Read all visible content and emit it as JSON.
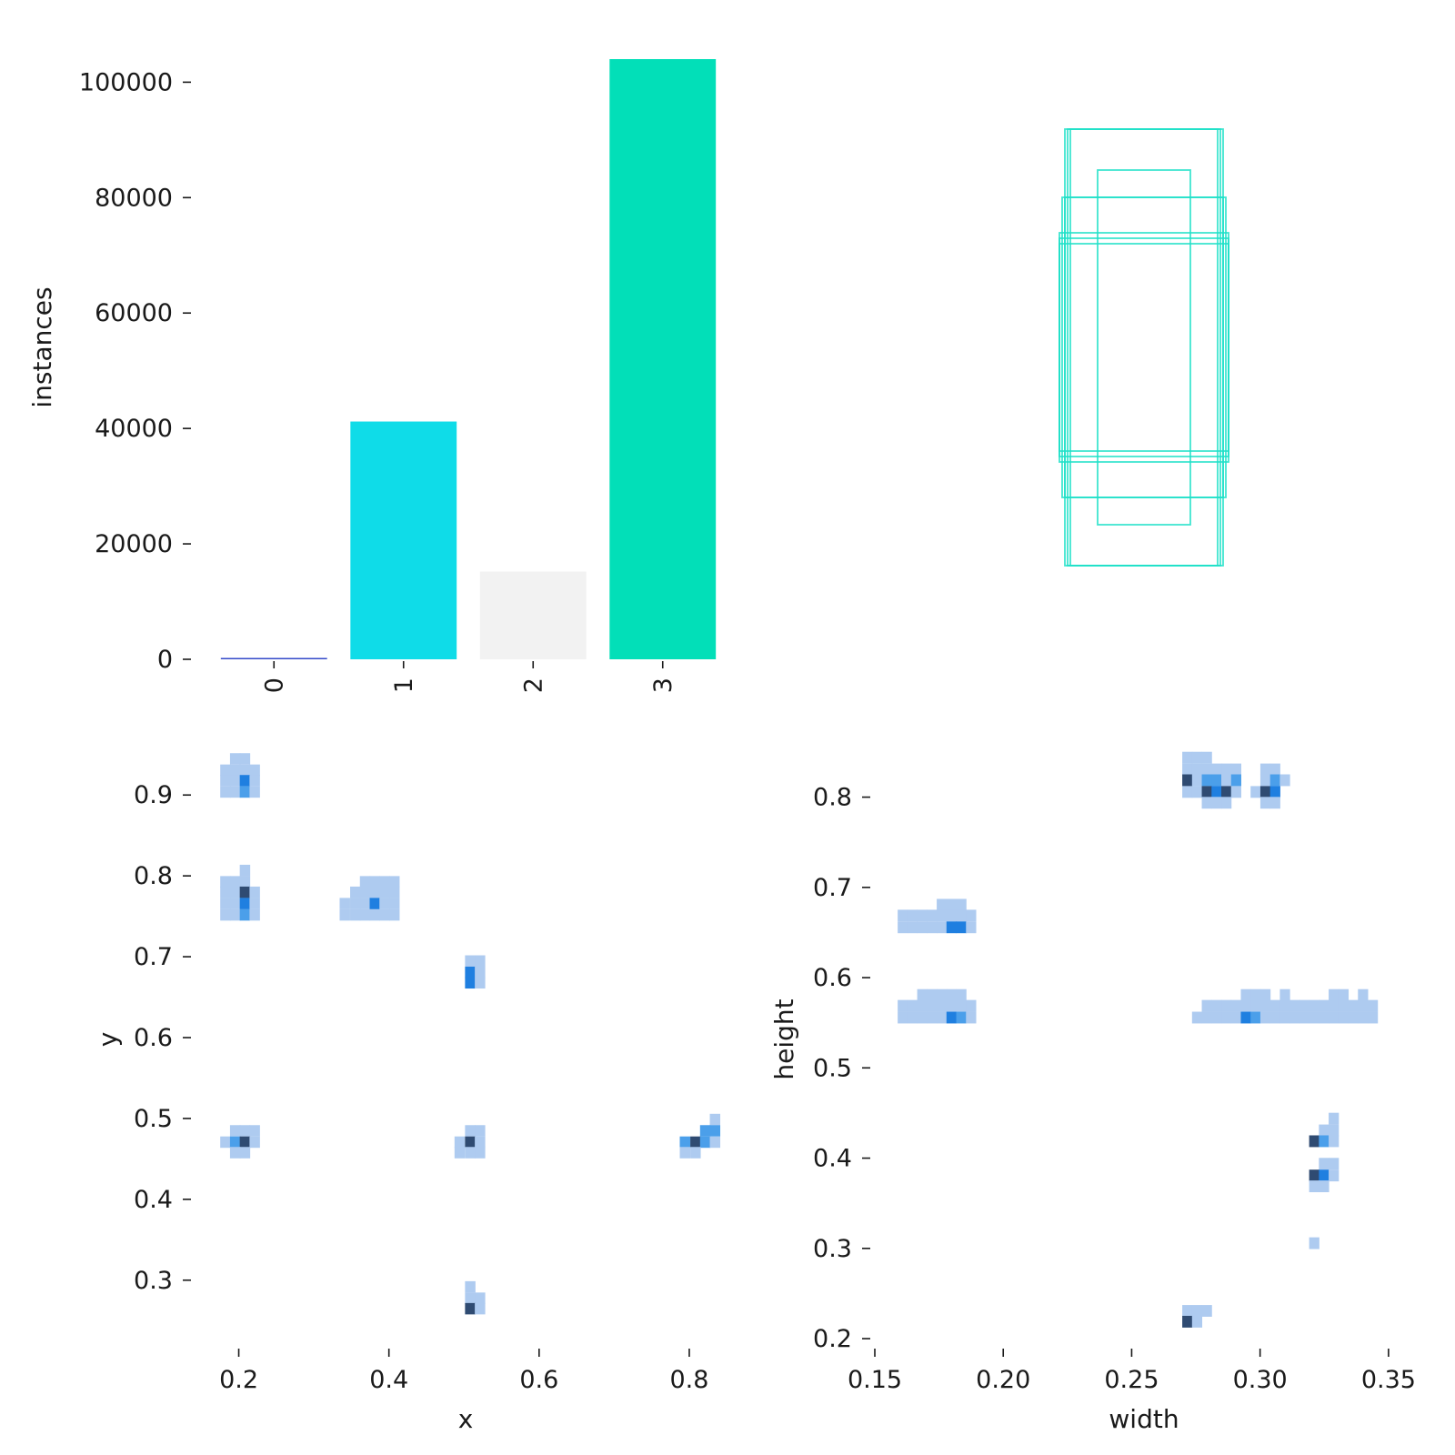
{
  "colors": {
    "class_0": "#3349c9",
    "class_1": "#0fdce8",
    "class_2": "#f2f2f2",
    "class_3": "#02dfb8",
    "box_outline": "#1ee0c8",
    "heat_low": "#aecbf0",
    "heat_mid": "#4b9fea",
    "heat_high": "#1f7fe0",
    "heat_max": "#2f4b72"
  },
  "chart_data": [
    {
      "id": "class-counts",
      "type": "bar",
      "categories": [
        "0",
        "1",
        "2",
        "3"
      ],
      "values": [
        50,
        41200,
        15200,
        104000
      ],
      "title": "",
      "xlabel": "",
      "ylabel": "instances",
      "ylim": [
        0,
        104000
      ],
      "yticks": [
        0,
        20000,
        40000,
        60000,
        80000,
        100000
      ],
      "ytick_labels": [
        "0",
        "20000",
        "40000",
        "60000",
        "80000",
        "100000"
      ],
      "grid": false
    },
    {
      "id": "box-overlay",
      "type": "box-outlines",
      "title": "",
      "boxes": [
        {
          "w": 0.27,
          "h": 0.8
        },
        {
          "w": 0.28,
          "h": 0.8
        },
        {
          "w": 0.29,
          "h": 0.8
        },
        {
          "w": 0.17,
          "h": 0.65
        },
        {
          "w": 0.29,
          "h": 0.55
        },
        {
          "w": 0.3,
          "h": 0.55
        },
        {
          "w": 0.31,
          "h": 0.42
        },
        {
          "w": 0.31,
          "h": 0.38
        },
        {
          "w": 0.31,
          "h": 0.4
        }
      ]
    },
    {
      "id": "xy-hist",
      "type": "heatmap",
      "xlabel": "x",
      "ylabel": "y",
      "xlim": [
        0.14,
        0.84
      ],
      "ylim": [
        0.23,
        0.97
      ],
      "xticks": [
        0.2,
        0.4,
        0.6,
        0.8
      ],
      "xtick_labels": [
        "0.2",
        "0.4",
        "0.6",
        "0.8"
      ],
      "yticks": [
        0.3,
        0.4,
        0.5,
        0.6,
        0.7,
        0.8,
        0.9
      ],
      "ytick_labels": [
        "0.3",
        "0.4",
        "0.5",
        "0.6",
        "0.7",
        "0.8",
        "0.9"
      ],
      "bin": [
        0.0133,
        0.0135
      ],
      "cells": [
        [
          0.195,
          0.945,
          1
        ],
        [
          0.208,
          0.945,
          1
        ],
        [
          0.182,
          0.931,
          1
        ],
        [
          0.195,
          0.931,
          1
        ],
        [
          0.208,
          0.931,
          1
        ],
        [
          0.221,
          0.931,
          1
        ],
        [
          0.182,
          0.918,
          1
        ],
        [
          0.195,
          0.918,
          1
        ],
        [
          0.208,
          0.918,
          3
        ],
        [
          0.221,
          0.918,
          1
        ],
        [
          0.182,
          0.904,
          1
        ],
        [
          0.195,
          0.904,
          1
        ],
        [
          0.208,
          0.904,
          2
        ],
        [
          0.221,
          0.904,
          1
        ],
        [
          0.208,
          0.807,
          1
        ],
        [
          0.182,
          0.793,
          1
        ],
        [
          0.195,
          0.793,
          1
        ],
        [
          0.208,
          0.793,
          1
        ],
        [
          0.182,
          0.78,
          1
        ],
        [
          0.195,
          0.78,
          1
        ],
        [
          0.208,
          0.78,
          4
        ],
        [
          0.221,
          0.78,
          1
        ],
        [
          0.182,
          0.766,
          1
        ],
        [
          0.195,
          0.766,
          1
        ],
        [
          0.208,
          0.766,
          3
        ],
        [
          0.221,
          0.766,
          1
        ],
        [
          0.182,
          0.752,
          1
        ],
        [
          0.195,
          0.752,
          1
        ],
        [
          0.208,
          0.752,
          2
        ],
        [
          0.221,
          0.752,
          1
        ],
        [
          0.368,
          0.793,
          1
        ],
        [
          0.381,
          0.793,
          1
        ],
        [
          0.394,
          0.793,
          1
        ],
        [
          0.407,
          0.793,
          1
        ],
        [
          0.355,
          0.78,
          1
        ],
        [
          0.368,
          0.78,
          1
        ],
        [
          0.381,
          0.78,
          1
        ],
        [
          0.394,
          0.78,
          1
        ],
        [
          0.407,
          0.78,
          1
        ],
        [
          0.341,
          0.766,
          1
        ],
        [
          0.355,
          0.766,
          1
        ],
        [
          0.368,
          0.766,
          1
        ],
        [
          0.381,
          0.766,
          3
        ],
        [
          0.394,
          0.766,
          1
        ],
        [
          0.407,
          0.766,
          1
        ],
        [
          0.341,
          0.752,
          1
        ],
        [
          0.355,
          0.752,
          1
        ],
        [
          0.368,
          0.752,
          1
        ],
        [
          0.381,
          0.752,
          1
        ],
        [
          0.394,
          0.752,
          1
        ],
        [
          0.407,
          0.752,
          1
        ],
        [
          0.508,
          0.695,
          1
        ],
        [
          0.521,
          0.695,
          1
        ],
        [
          0.508,
          0.681,
          3
        ],
        [
          0.521,
          0.681,
          1
        ],
        [
          0.508,
          0.668,
          3
        ],
        [
          0.521,
          0.668,
          1
        ],
        [
          0.195,
          0.485,
          1
        ],
        [
          0.208,
          0.485,
          1
        ],
        [
          0.221,
          0.485,
          1
        ],
        [
          0.182,
          0.471,
          1
        ],
        [
          0.195,
          0.471,
          2
        ],
        [
          0.208,
          0.471,
          4
        ],
        [
          0.221,
          0.471,
          1
        ],
        [
          0.195,
          0.458,
          1
        ],
        [
          0.208,
          0.458,
          1
        ],
        [
          0.508,
          0.485,
          1
        ],
        [
          0.521,
          0.485,
          1
        ],
        [
          0.494,
          0.471,
          1
        ],
        [
          0.508,
          0.471,
          4
        ],
        [
          0.521,
          0.471,
          1
        ],
        [
          0.494,
          0.458,
          1
        ],
        [
          0.508,
          0.458,
          1
        ],
        [
          0.521,
          0.458,
          1
        ],
        [
          0.834,
          0.499,
          1
        ],
        [
          0.821,
          0.485,
          2
        ],
        [
          0.834,
          0.485,
          2
        ],
        [
          0.794,
          0.471,
          2
        ],
        [
          0.808,
          0.471,
          4
        ],
        [
          0.821,
          0.471,
          2
        ],
        [
          0.834,
          0.471,
          1
        ],
        [
          0.794,
          0.458,
          1
        ],
        [
          0.808,
          0.458,
          1
        ],
        [
          0.508,
          0.292,
          1
        ],
        [
          0.508,
          0.278,
          1
        ],
        [
          0.521,
          0.278,
          1
        ],
        [
          0.508,
          0.265,
          4
        ],
        [
          0.521,
          0.265,
          1
        ]
      ]
    },
    {
      "id": "wh-hist",
      "type": "heatmap",
      "xlabel": "width",
      "ylabel": "height",
      "xlim": [
        0.15,
        0.355
      ],
      "ylim": [
        0.195,
        0.855
      ],
      "xticks": [
        0.15,
        0.2,
        0.25,
        0.3,
        0.35
      ],
      "xtick_labels": [
        "0.15",
        "0.20",
        "0.25",
        "0.30",
        "0.35"
      ],
      "yticks": [
        0.2,
        0.3,
        0.4,
        0.5,
        0.6,
        0.7,
        0.8
      ],
      "ytick_labels": [
        "0.2",
        "0.3",
        "0.4",
        "0.5",
        "0.6",
        "0.7",
        "0.8"
      ],
      "bin": [
        0.0038,
        0.0125
      ],
      "cells": [
        [
          0.2716,
          0.844,
          1
        ],
        [
          0.2754,
          0.844,
          1
        ],
        [
          0.2792,
          0.844,
          1
        ],
        [
          0.2716,
          0.831,
          1
        ],
        [
          0.2754,
          0.831,
          1
        ],
        [
          0.2792,
          0.831,
          1
        ],
        [
          0.283,
          0.831,
          1
        ],
        [
          0.2868,
          0.831,
          1
        ],
        [
          0.2906,
          0.831,
          1
        ],
        [
          0.302,
          0.831,
          1
        ],
        [
          0.3058,
          0.831,
          1
        ],
        [
          0.2716,
          0.819,
          4
        ],
        [
          0.2754,
          0.819,
          1
        ],
        [
          0.2792,
          0.819,
          2
        ],
        [
          0.283,
          0.819,
          2
        ],
        [
          0.2868,
          0.819,
          1
        ],
        [
          0.2906,
          0.819,
          2
        ],
        [
          0.302,
          0.819,
          1
        ],
        [
          0.3058,
          0.819,
          2
        ],
        [
          0.3096,
          0.819,
          1
        ],
        [
          0.2716,
          0.806,
          1
        ],
        [
          0.2754,
          0.806,
          1
        ],
        [
          0.2792,
          0.806,
          4
        ],
        [
          0.283,
          0.806,
          3
        ],
        [
          0.2868,
          0.806,
          4
        ],
        [
          0.2906,
          0.806,
          1
        ],
        [
          0.2982,
          0.806,
          1
        ],
        [
          0.302,
          0.806,
          4
        ],
        [
          0.3058,
          0.806,
          3
        ],
        [
          0.2792,
          0.794,
          1
        ],
        [
          0.283,
          0.794,
          1
        ],
        [
          0.2868,
          0.794,
          1
        ],
        [
          0.302,
          0.794,
          1
        ],
        [
          0.3058,
          0.794,
          1
        ],
        [
          0.176,
          0.681,
          1
        ],
        [
          0.1798,
          0.681,
          1
        ],
        [
          0.1836,
          0.681,
          1
        ],
        [
          0.1608,
          0.669,
          1
        ],
        [
          0.1646,
          0.669,
          1
        ],
        [
          0.1684,
          0.669,
          1
        ],
        [
          0.1722,
          0.669,
          1
        ],
        [
          0.176,
          0.669,
          1
        ],
        [
          0.1798,
          0.669,
          1
        ],
        [
          0.1836,
          0.669,
          1
        ],
        [
          0.1874,
          0.669,
          1
        ],
        [
          0.1608,
          0.656,
          1
        ],
        [
          0.1646,
          0.656,
          1
        ],
        [
          0.1684,
          0.656,
          1
        ],
        [
          0.1722,
          0.656,
          1
        ],
        [
          0.176,
          0.656,
          1
        ],
        [
          0.1798,
          0.656,
          3
        ],
        [
          0.1836,
          0.656,
          3
        ],
        [
          0.1874,
          0.656,
          1
        ],
        [
          0.1684,
          0.581,
          1
        ],
        [
          0.1722,
          0.581,
          1
        ],
        [
          0.176,
          0.581,
          1
        ],
        [
          0.1798,
          0.581,
          1
        ],
        [
          0.1836,
          0.581,
          1
        ],
        [
          0.1608,
          0.569,
          1
        ],
        [
          0.1646,
          0.569,
          1
        ],
        [
          0.1684,
          0.569,
          1
        ],
        [
          0.1722,
          0.569,
          1
        ],
        [
          0.176,
          0.569,
          1
        ],
        [
          0.1798,
          0.569,
          1
        ],
        [
          0.1836,
          0.569,
          1
        ],
        [
          0.1874,
          0.569,
          1
        ],
        [
          0.1608,
          0.556,
          1
        ],
        [
          0.1646,
          0.556,
          1
        ],
        [
          0.1684,
          0.556,
          1
        ],
        [
          0.1722,
          0.556,
          1
        ],
        [
          0.176,
          0.556,
          1
        ],
        [
          0.1798,
          0.556,
          3
        ],
        [
          0.1836,
          0.556,
          2
        ],
        [
          0.1874,
          0.556,
          1
        ],
        [
          0.2944,
          0.581,
          1
        ],
        [
          0.2982,
          0.581,
          1
        ],
        [
          0.302,
          0.581,
          1
        ],
        [
          0.3096,
          0.581,
          1
        ],
        [
          0.3286,
          0.581,
          1
        ],
        [
          0.3324,
          0.581,
          1
        ],
        [
          0.34,
          0.581,
          1
        ],
        [
          0.2792,
          0.569,
          1
        ],
        [
          0.283,
          0.569,
          1
        ],
        [
          0.2868,
          0.569,
          1
        ],
        [
          0.2906,
          0.569,
          1
        ],
        [
          0.2944,
          0.569,
          1
        ],
        [
          0.2982,
          0.569,
          1
        ],
        [
          0.302,
          0.569,
          1
        ],
        [
          0.3058,
          0.569,
          1
        ],
        [
          0.3096,
          0.569,
          1
        ],
        [
          0.3134,
          0.569,
          1
        ],
        [
          0.3172,
          0.569,
          1
        ],
        [
          0.321,
          0.569,
          1
        ],
        [
          0.3248,
          0.569,
          1
        ],
        [
          0.3286,
          0.569,
          1
        ],
        [
          0.3324,
          0.569,
          1
        ],
        [
          0.3362,
          0.569,
          1
        ],
        [
          0.34,
          0.569,
          1
        ],
        [
          0.3438,
          0.569,
          1
        ],
        [
          0.2754,
          0.556,
          1
        ],
        [
          0.2792,
          0.556,
          1
        ],
        [
          0.283,
          0.556,
          1
        ],
        [
          0.2868,
          0.556,
          1
        ],
        [
          0.2906,
          0.556,
          1
        ],
        [
          0.2944,
          0.556,
          3
        ],
        [
          0.2982,
          0.556,
          2
        ],
        [
          0.302,
          0.556,
          1
        ],
        [
          0.3058,
          0.556,
          1
        ],
        [
          0.3096,
          0.556,
          1
        ],
        [
          0.3134,
          0.556,
          1
        ],
        [
          0.3172,
          0.556,
          1
        ],
        [
          0.321,
          0.556,
          1
        ],
        [
          0.3248,
          0.556,
          1
        ],
        [
          0.3286,
          0.556,
          1
        ],
        [
          0.3324,
          0.556,
          1
        ],
        [
          0.3362,
          0.556,
          1
        ],
        [
          0.34,
          0.556,
          1
        ],
        [
          0.3438,
          0.556,
          1
        ],
        [
          0.3286,
          0.444,
          1
        ],
        [
          0.3248,
          0.431,
          1
        ],
        [
          0.3286,
          0.431,
          1
        ],
        [
          0.321,
          0.419,
          4
        ],
        [
          0.3248,
          0.419,
          2
        ],
        [
          0.3286,
          0.419,
          1
        ],
        [
          0.3248,
          0.394,
          1
        ],
        [
          0.3286,
          0.394,
          1
        ],
        [
          0.321,
          0.381,
          4
        ],
        [
          0.3248,
          0.381,
          3
        ],
        [
          0.3286,
          0.381,
          1
        ],
        [
          0.321,
          0.369,
          1
        ],
        [
          0.3248,
          0.369,
          1
        ],
        [
          0.321,
          0.306,
          1
        ],
        [
          0.2716,
          0.231,
          1
        ],
        [
          0.2754,
          0.231,
          1
        ],
        [
          0.2792,
          0.231,
          1
        ],
        [
          0.2716,
          0.219,
          4
        ],
        [
          0.2754,
          0.219,
          1
        ]
      ]
    }
  ]
}
